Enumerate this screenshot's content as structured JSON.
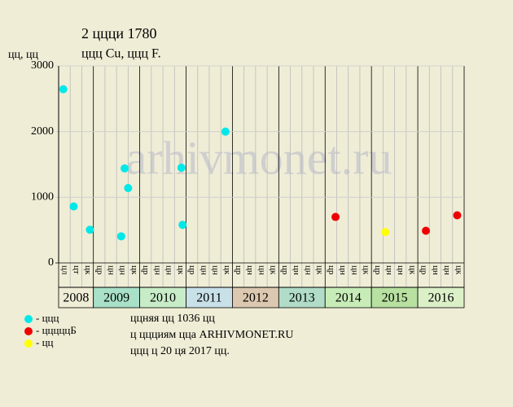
{
  "chart_data": {
    "type": "scatter",
    "title": "2 ццци 1780",
    "subtitle": "ццц Cu, ццц F.",
    "y_label": "цц, цц",
    "watermark": "arhivmonet.ru",
    "ylim": [
      0,
      3000
    ],
    "yticks": [
      0,
      1000,
      2000,
      3000
    ],
    "xlim": [
      0,
      35
    ],
    "periods": [
      {
        "year": "2008",
        "color": "#efedd6",
        "labels": [
          "цл",
          "цт",
          "цк"
        ]
      },
      {
        "year": "2009",
        "color": "#a8e0c8",
        "labels": [
          "цр",
          "цн",
          "цн",
          "цк"
        ]
      },
      {
        "year": "2010",
        "color": "#c8ecc8",
        "labels": [
          "цр",
          "цн",
          "цн",
          "цк"
        ]
      },
      {
        "year": "2011",
        "color": "#c8e0e8",
        "labels": [
          "цр",
          "цн",
          "цн",
          "цк"
        ]
      },
      {
        "year": "2012",
        "color": "#dcc8b0",
        "labels": [
          "цр",
          "цн",
          "цн",
          "цк"
        ]
      },
      {
        "year": "2013",
        "color": "#b0dcc8",
        "labels": [
          "цр",
          "цн",
          "цн",
          "цк"
        ]
      },
      {
        "year": "2014",
        "color": "#c8ecb8",
        "labels": [
          "цр",
          "цн",
          "цн",
          "цк"
        ]
      },
      {
        "year": "2015",
        "color": "#b8e0a0",
        "labels": [
          "цр",
          "цн",
          "цн",
          "цк"
        ]
      },
      {
        "year": "2016",
        "color": "#dcf0c8",
        "labels": [
          "цр",
          "цн",
          "цн",
          "цк"
        ]
      }
    ],
    "series": [
      {
        "name": "- ццц",
        "color": "#00e8e8",
        "x": [
          0.4,
          1.3,
          2.7,
          5.4,
          5.7,
          6.0,
          10.6,
          10.7,
          14.4
        ],
        "values": [
          2645,
          860,
          505,
          405,
          1440,
          1140,
          1450,
          580,
          2000
        ]
      },
      {
        "name": "- цццццБ",
        "color": "#ee0000",
        "x": [
          23.9,
          31.7,
          34.4
        ],
        "values": [
          700,
          490,
          725
        ]
      },
      {
        "name": "- цц",
        "color": "#ffff00",
        "x": [
          28.2
        ],
        "values": [
          470
        ]
      }
    ],
    "notes": [
      "ццняя цц 1036 цц",
      "ц ццциям цца ARHIVMONET.RU",
      "ццц ц 20 ця 2017 цц."
    ]
  }
}
